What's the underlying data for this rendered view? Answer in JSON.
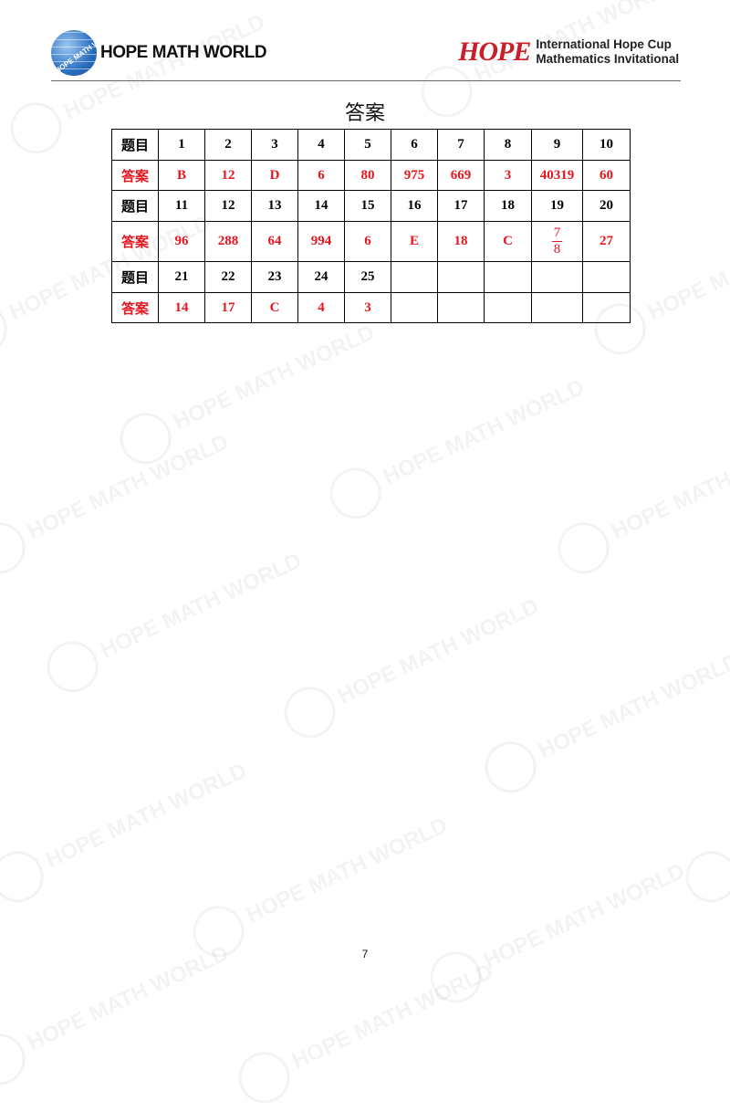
{
  "header": {
    "left_brand": "HOPE MATH WORLD",
    "left_globe_text": "HOPE MATH WORLD",
    "right_mark": "HOPE",
    "right_line1": "International Hope Cup",
    "right_line2": "Mathematics Invitational"
  },
  "watermark": "HOPE MATH WORLD",
  "title": "答案",
  "table": {
    "question_label": "题目",
    "answer_label": "答案",
    "rows": [
      {
        "questions": [
          "1",
          "2",
          "3",
          "4",
          "5",
          "6",
          "7",
          "8",
          "9",
          "10"
        ],
        "answers": [
          "B",
          "12",
          "D",
          "6",
          "80",
          "975",
          "669",
          "3",
          "40319",
          "60"
        ]
      },
      {
        "questions": [
          "11",
          "12",
          "13",
          "14",
          "15",
          "16",
          "17",
          "18",
          "19",
          "20"
        ],
        "answers": [
          "96",
          "288",
          "64",
          "994",
          "6",
          "E",
          "18",
          "C",
          {
            "num": "7",
            "den": "8"
          },
          "27"
        ]
      },
      {
        "questions": [
          "21",
          "22",
          "23",
          "24",
          "25",
          "",
          "",
          "",
          "",
          ""
        ],
        "answers": [
          "14",
          "17",
          "C",
          "4",
          "3",
          "",
          "",
          "",
          "",
          ""
        ]
      }
    ]
  },
  "page_number": "7",
  "colors": {
    "answer": "#e8141e",
    "brand_red": "#c8202a"
  }
}
